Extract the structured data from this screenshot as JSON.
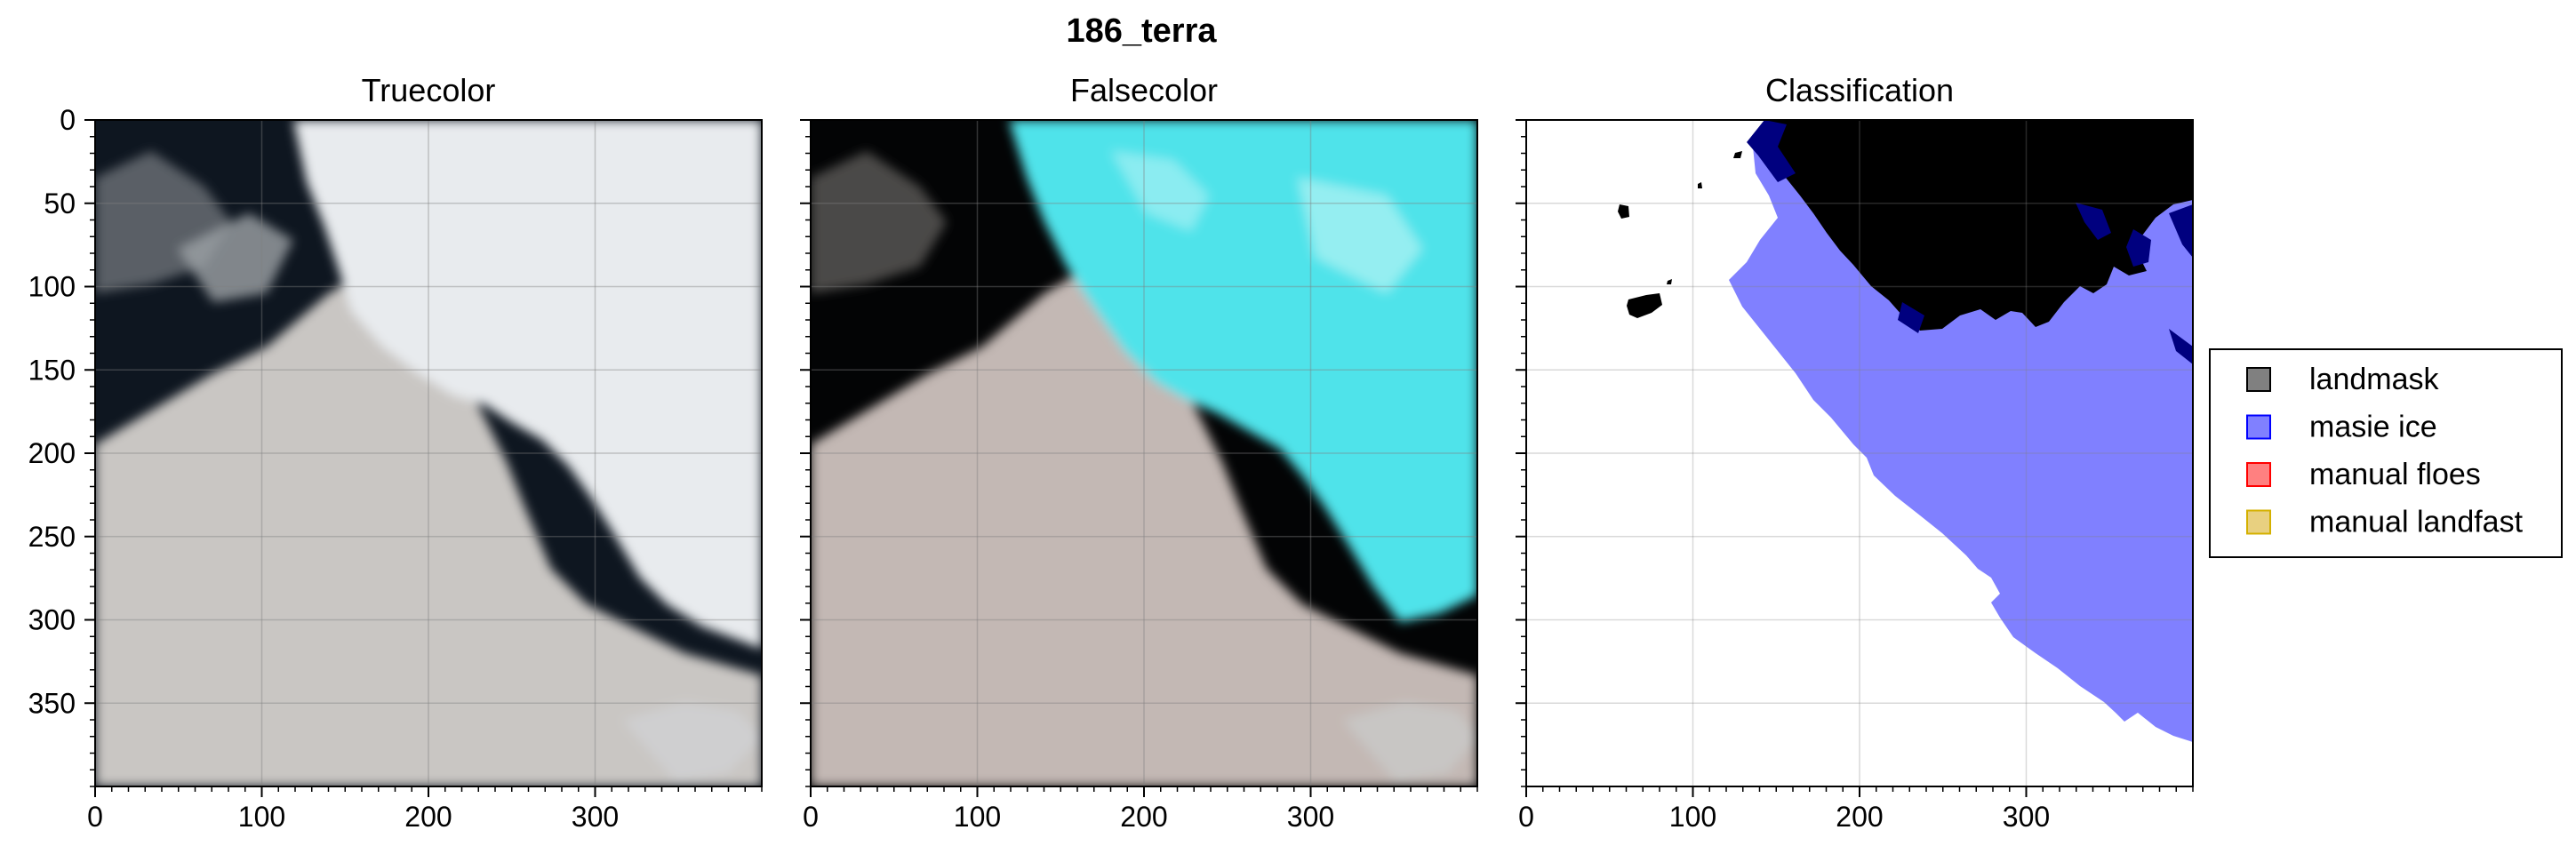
{
  "figure": {
    "title": "186_terra"
  },
  "chart_data": [
    {
      "type": "image",
      "title": "Truecolor",
      "xlim": [
        0,
        400
      ],
      "ylim": [
        400,
        0
      ],
      "xticks": [
        0,
        100,
        200,
        300
      ],
      "yticks": [
        0,
        50,
        100,
        150,
        200,
        250,
        300,
        350
      ],
      "grid": true,
      "panel_colors": {
        "water": "#0e1620",
        "ice": "#e8ebee",
        "cloud": "#c9c6c3"
      }
    },
    {
      "type": "image",
      "title": "Falsecolor",
      "xlim": [
        0,
        400
      ],
      "ylim": [
        400,
        0
      ],
      "xticks": [
        0,
        100,
        200,
        300
      ],
      "yticks": [
        0,
        50,
        100,
        150,
        200,
        250,
        300,
        350
      ],
      "grid": true,
      "panel_colors": {
        "water": "#030405",
        "ice": "#4fe3ea",
        "cloud": "#c3b8b4"
      }
    },
    {
      "type": "image",
      "title": "Classification",
      "xlim": [
        0,
        400
      ],
      "ylim": [
        400,
        0
      ],
      "xticks": [
        0,
        100,
        200,
        300
      ],
      "yticks": [
        0,
        50,
        100,
        150,
        200,
        250,
        300,
        350
      ],
      "grid": true,
      "panel_colors": {
        "background": "#ffffff",
        "landmask": "#000000",
        "masie_ice": "#8080ff",
        "overlap": "#00007f"
      },
      "legend": {
        "placement": "right",
        "entries": [
          {
            "label": "landmask",
            "color": "#808080",
            "edge": "#000000"
          },
          {
            "label": "masie ice",
            "color": "#8080ff",
            "edge": "#0000ff"
          },
          {
            "label": "manual floes",
            "color": "#ff8080",
            "edge": "#ff0000"
          },
          {
            "label": "manual landfast",
            "color": "#e8d080",
            "edge": "#d4b000"
          }
        ]
      }
    }
  ]
}
